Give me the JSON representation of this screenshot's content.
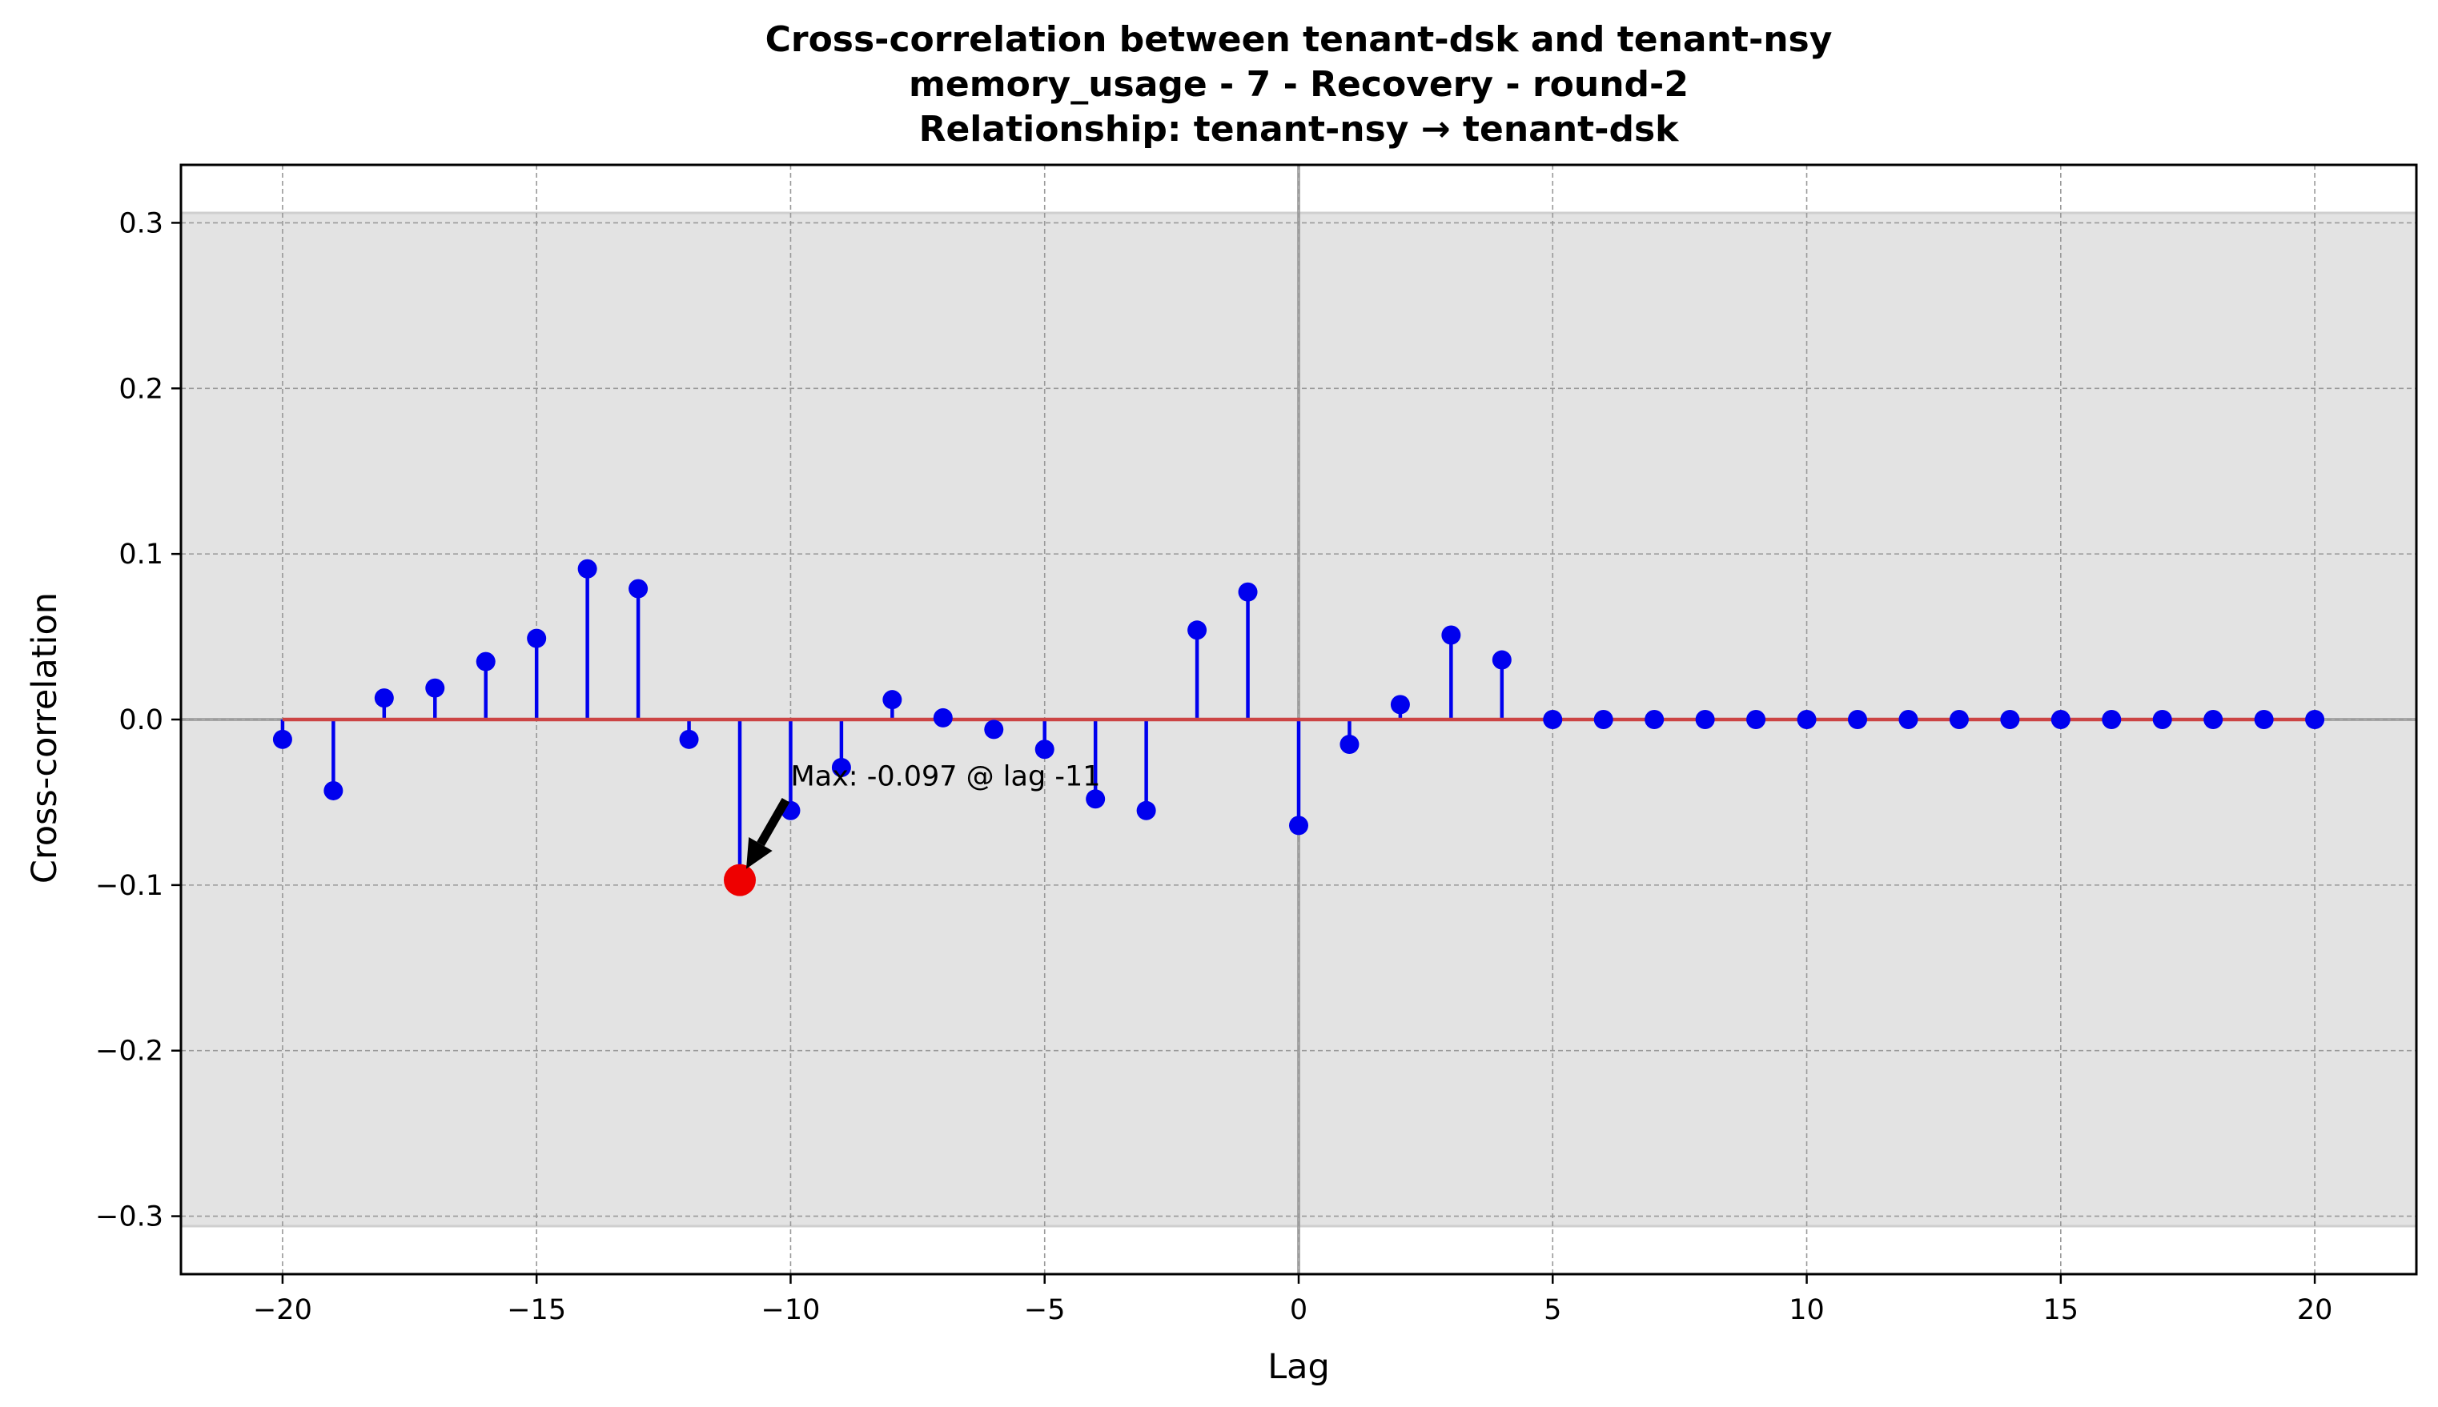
{
  "chart_data": {
    "type": "stem",
    "title": [
      "Cross-correlation between tenant-dsk and tenant-nsy",
      "memory_usage - 7 - Recovery - round-2",
      "Relationship: tenant-nsy → tenant-dsk"
    ],
    "xlabel": "Lag",
    "ylabel": "Cross-correlation",
    "xlim": [
      -22,
      22
    ],
    "ylim": [
      -0.335,
      0.335
    ],
    "xticks": [
      -20,
      -15,
      -10,
      -5,
      0,
      5,
      10,
      15,
      20
    ],
    "xtick_labels": [
      "−20",
      "−15",
      "−10",
      "−5",
      "0",
      "5",
      "10",
      "15",
      "20"
    ],
    "yticks": [
      -0.3,
      -0.2,
      -0.1,
      0.0,
      0.1,
      0.2,
      0.3
    ],
    "ytick_labels": [
      "−0.3",
      "−0.2",
      "−0.1",
      "0.0",
      "0.1",
      "0.2",
      "0.3"
    ],
    "grid": true,
    "confidence_band": [
      -0.306,
      0.306
    ],
    "lags": [
      -20,
      -19,
      -18,
      -17,
      -16,
      -15,
      -14,
      -13,
      -12,
      -11,
      -10,
      -9,
      -8,
      -7,
      -6,
      -5,
      -4,
      -3,
      -2,
      -1,
      0,
      1,
      2,
      3,
      4,
      5,
      6,
      7,
      8,
      9,
      10,
      11,
      12,
      13,
      14,
      15,
      16,
      17,
      18,
      19,
      20
    ],
    "values": [
      -0.012,
      -0.043,
      0.013,
      0.019,
      0.035,
      0.049,
      0.091,
      0.079,
      -0.012,
      -0.097,
      -0.055,
      -0.029,
      0.012,
      0.001,
      -0.006,
      -0.018,
      -0.048,
      -0.055,
      0.054,
      0.077,
      -0.064,
      -0.015,
      0.009,
      0.051,
      0.036,
      0.0,
      0.0,
      0.0,
      0.0,
      0.0,
      0.0,
      0.0,
      0.0,
      0.0,
      0.0,
      0.0,
      0.0,
      0.0,
      0.0,
      0.0,
      0.0
    ],
    "highlight": {
      "lag": -11,
      "value": -0.097,
      "label": "Max: -0.097 @ lag -11"
    },
    "colors": {
      "stem": "#0000ee",
      "marker": "#0000ee",
      "highlight": "#ee0000",
      "baseline": "#cc4444",
      "band": "#e3e3e3",
      "zero_lines": "#999999",
      "grid": "#999999"
    }
  }
}
